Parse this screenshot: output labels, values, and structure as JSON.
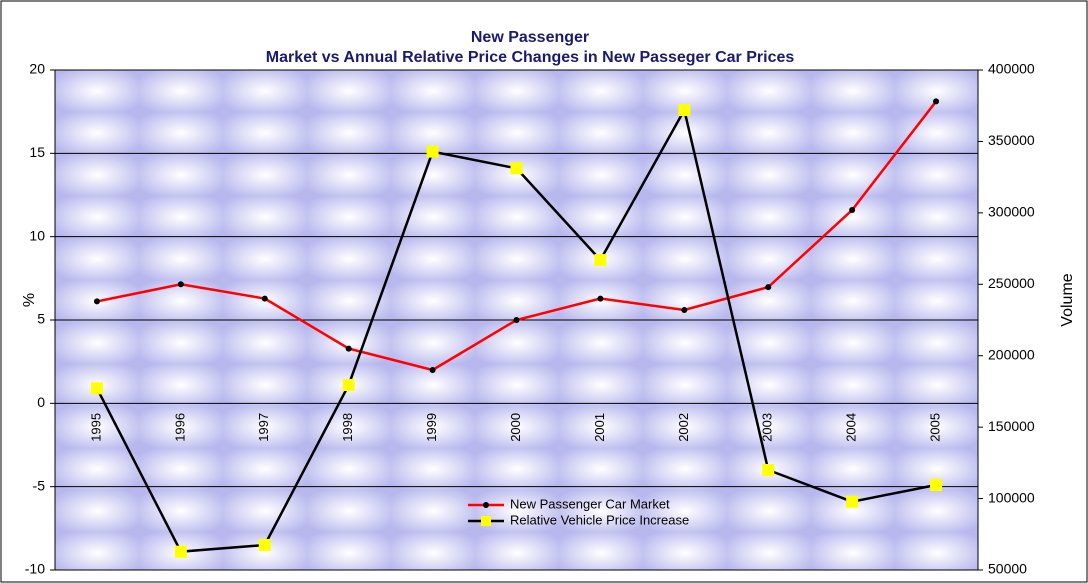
{
  "chart_data": {
    "type": "line",
    "title": "New Passenger",
    "subtitle": "Market vs Annual Relative Price Changes in New Passeger Car Prices",
    "y_label": "%",
    "y2_label": "Volume",
    "categories": [
      "1995",
      "1996",
      "1997",
      "1998",
      "1999",
      "2000",
      "2001",
      "2002",
      "2003",
      "2004",
      "2005"
    ],
    "series": [
      {
        "name": "New Passenger Car Market",
        "color": "#ff0000",
        "marker_color": "#000000",
        "marker": "circle",
        "axis": "y2",
        "values": [
          238000,
          250000,
          240000,
          205000,
          190000,
          225000,
          240000,
          232000,
          248000,
          302000,
          378000
        ]
      },
      {
        "name": "Relative Vehicle Price Increase",
        "color": "#000000",
        "marker_color": "#ffff00",
        "marker": "square",
        "axis": "y",
        "values": [
          0.9,
          -8.9,
          -8.5,
          1.1,
          15.1,
          14.1,
          8.6,
          17.6,
          -4.0,
          -5.9,
          -4.9
        ]
      }
    ],
    "ylim": [
      -10,
      20
    ],
    "yticks": [
      -10,
      -5,
      0,
      5,
      10,
      15,
      20
    ],
    "y2lim": [
      50000,
      400000
    ],
    "y2ticks": [
      50000,
      100000,
      150000,
      200000,
      250000,
      300000,
      350000,
      400000
    ],
    "grid": true,
    "legend": "lower center"
  }
}
